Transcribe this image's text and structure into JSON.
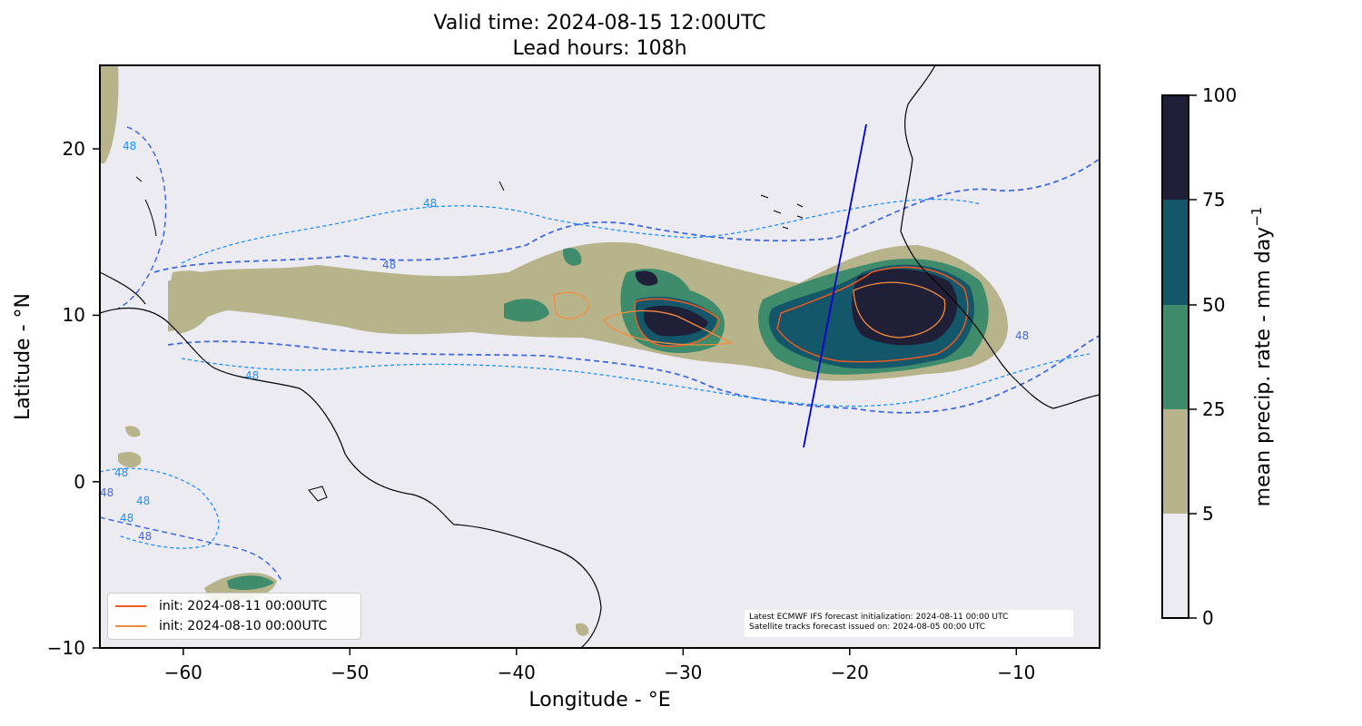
{
  "title_line1": "Valid time: 2024-08-15 12:00UTC",
  "title_line2": "Lead hours: 108h",
  "xlabel": "Longitude - °E",
  "ylabel": "Latitude - °N",
  "x_ticks": [
    "−60",
    "−50",
    "−40",
    "−30",
    "−20",
    "−10"
  ],
  "y_ticks": [
    "20",
    "10",
    "0",
    "−10"
  ],
  "contour_label": "48",
  "colorbar": {
    "label": "mean precip. rate - mm day",
    "label_superscript": "−1",
    "ticks": [
      "0",
      "5",
      "25",
      "50",
      "75",
      "100"
    ],
    "colors": [
      "#ecebf1",
      "#b7b48c",
      "#3f8c6c",
      "#14566a",
      "#201f38"
    ]
  },
  "legend": [
    {
      "label": "init: 2024-08-11 00:00UTC",
      "color": "#f05a1e"
    },
    {
      "label": "init: 2024-08-10 00:00UTC",
      "color": "#f58c3c"
    }
  ],
  "info": {
    "line1": "Latest ECMWF IFS forecast initialization: 2024-08-11 00:00 UTC",
    "line2": "Satellite tracks forecast issued on: 2024-08-05 00:00 UTC"
  },
  "map": {
    "lon_range": [
      -65,
      -5
    ],
    "lat_range": [
      -10,
      25
    ],
    "background_color": "#ecebf1",
    "contour_colors": {
      "dashed_dark": "#4169e1",
      "dashed_light": "#1e90ff",
      "track": "#0000cd"
    }
  }
}
